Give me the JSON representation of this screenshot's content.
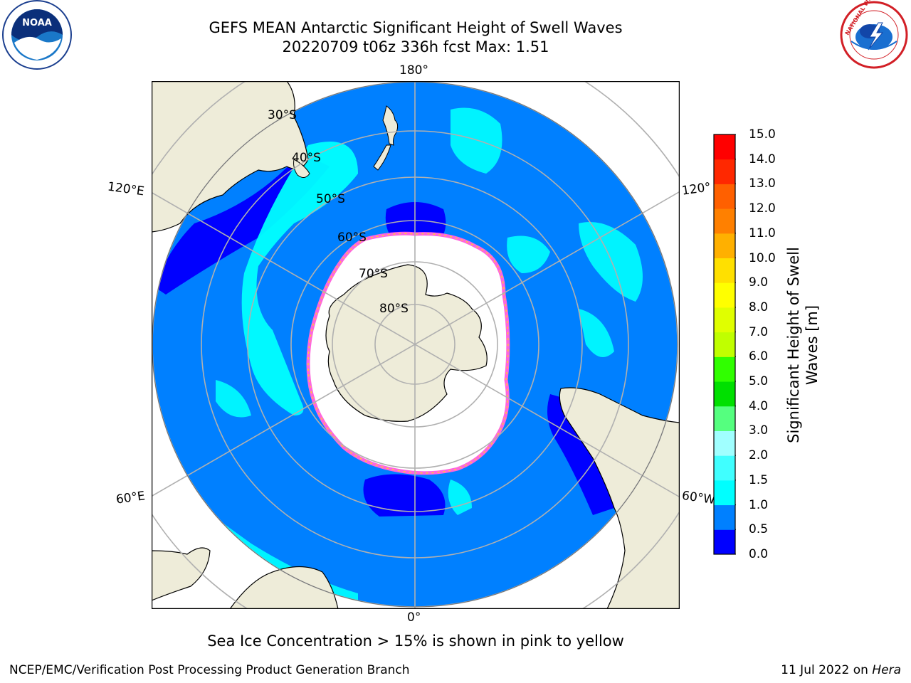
{
  "title": {
    "line1": "GEFS MEAN Antarctic Significant Height of Swell Waves",
    "line2": "20220709 t06z 336h fcst   Max: 1.51"
  },
  "map_labels": {
    "top": "180°",
    "bottom": "0°",
    "left_upper": "120°E",
    "left_lower": "60°E",
    "right_upper": "120°",
    "right_lower": "60°W",
    "lat30": "30°S",
    "lat40": "40°S",
    "lat50": "50°S",
    "lat60": "60°S",
    "lat70": "70°S",
    "lat80": "80°S"
  },
  "colorbar": {
    "label": "Significant Height of Swell Waves [m]",
    "ticks": [
      "0.0",
      "0.5",
      "1.0",
      "1.5",
      "2.0",
      "3.0",
      "4.0",
      "5.0",
      "6.0",
      "7.0",
      "8.0",
      "9.0",
      "10.0",
      "11.0",
      "12.0",
      "13.0",
      "14.0",
      "15.0"
    ],
    "colors": [
      "#0000ff",
      "#0080ff",
      "#00ffff",
      "#40ffff",
      "#a0ffff",
      "#55ff7f",
      "#00e000",
      "#30ff00",
      "#c0ff00",
      "#e0ff00",
      "#ffff00",
      "#ffe000",
      "#ffb000",
      "#ff8000",
      "#ff6000",
      "#ff2800",
      "#ff0000"
    ]
  },
  "colors": {
    "land": "#eeecd9",
    "sea_ice": "#ffffff",
    "ice_edge": "#ff66dd",
    "swell_low": "#0080ff",
    "swell_very_low": "#0000ff",
    "swell_mid": "#00ffff"
  },
  "caption": "Sea Ice Concentration > 15% is shown in pink to yellow",
  "footer": {
    "left": "NCEP/EMC/Verification Post Processing Product Generation Branch",
    "right_prefix": "11 Jul 2022 on ",
    "right_italic": "Hera"
  },
  "logos": {
    "noaa_text": "NOAA",
    "nws_text": "NATIONAL WEATHER SERVICE"
  }
}
